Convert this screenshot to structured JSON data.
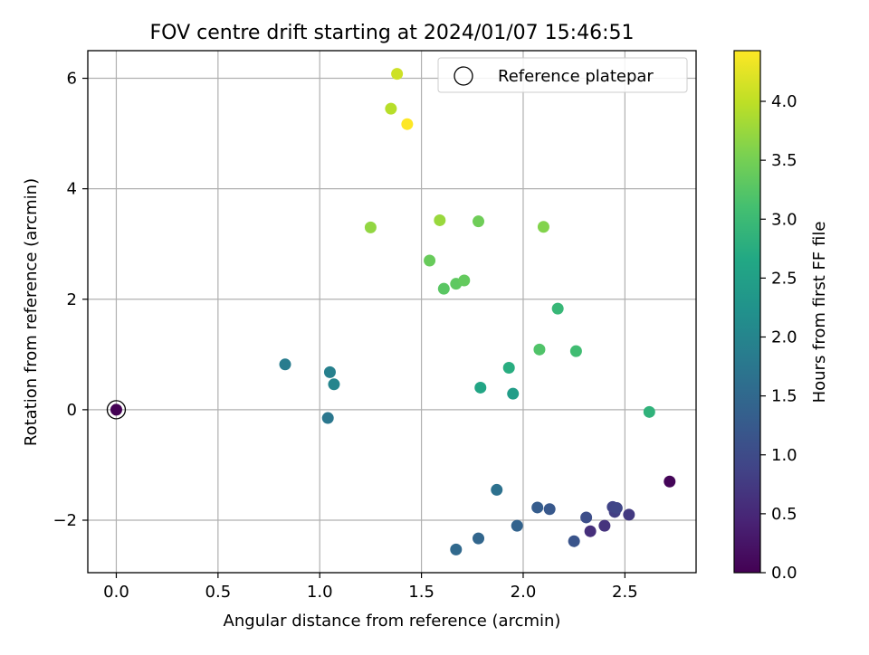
{
  "chart_data": {
    "type": "scatter",
    "title": "FOV centre drift starting at 2024/01/07 15:46:51",
    "xlabel": "Angular distance from reference (arcmin)",
    "ylabel": "Rotation from reference (arcmin)",
    "xlim": [
      -0.14,
      2.85
    ],
    "ylim": [
      -2.95,
      6.5
    ],
    "x_ticks": [
      0.0,
      0.5,
      1.0,
      1.5,
      2.0,
      2.5
    ],
    "x_tick_labels": [
      "0.0",
      "0.5",
      "1.0",
      "1.5",
      "2.0",
      "2.5"
    ],
    "y_ticks": [
      -2,
      0,
      2,
      4,
      6
    ],
    "y_tick_labels": [
      "−2",
      "0",
      "2",
      "4",
      "6"
    ],
    "grid": true,
    "legend": {
      "placement": "top-right",
      "label": "Reference platepar"
    },
    "reference_point": {
      "x": 0.0,
      "y": 0.0
    },
    "colorbar": {
      "label": "Hours from first FF file",
      "range": [
        0.0,
        4.43
      ],
      "ticks": [
        0.0,
        0.5,
        1.0,
        1.5,
        2.0,
        2.5,
        3.0,
        3.5,
        4.0
      ],
      "tick_labels": [
        "0.0",
        "0.5",
        "1.0",
        "1.5",
        "2.0",
        "2.5",
        "3.0",
        "3.5",
        "4.0"
      ],
      "colormap": "viridis"
    },
    "points": [
      {
        "x": 0.0,
        "y": 0.0,
        "hours": 0.0
      },
      {
        "x": 2.72,
        "y": -1.3,
        "hours": 0.05
      },
      {
        "x": 2.33,
        "y": -2.2,
        "hours": 0.6
      },
      {
        "x": 2.4,
        "y": -2.1,
        "hours": 0.65
      },
      {
        "x": 2.52,
        "y": -1.9,
        "hours": 0.75
      },
      {
        "x": 2.45,
        "y": -1.85,
        "hours": 0.82
      },
      {
        "x": 2.44,
        "y": -1.76,
        "hours": 0.88
      },
      {
        "x": 2.46,
        "y": -1.78,
        "hours": 0.92
      },
      {
        "x": 2.31,
        "y": -1.95,
        "hours": 1.05
      },
      {
        "x": 2.25,
        "y": -2.38,
        "hours": 1.15
      },
      {
        "x": 2.13,
        "y": -1.8,
        "hours": 1.22
      },
      {
        "x": 2.07,
        "y": -1.77,
        "hours": 1.3
      },
      {
        "x": 1.97,
        "y": -2.1,
        "hours": 1.4
      },
      {
        "x": 1.78,
        "y": -2.33,
        "hours": 1.45
      },
      {
        "x": 1.67,
        "y": -2.53,
        "hours": 1.5
      },
      {
        "x": 1.87,
        "y": -1.45,
        "hours": 1.65
      },
      {
        "x": 1.04,
        "y": -0.15,
        "hours": 1.75
      },
      {
        "x": 0.83,
        "y": 0.82,
        "hours": 1.85
      },
      {
        "x": 1.05,
        "y": 0.68,
        "hours": 1.92
      },
      {
        "x": 1.07,
        "y": 0.46,
        "hours": 2.0
      },
      {
        "x": 1.95,
        "y": 0.29,
        "hours": 2.45
      },
      {
        "x": 1.79,
        "y": 0.4,
        "hours": 2.6
      },
      {
        "x": 1.93,
        "y": 0.76,
        "hours": 2.75
      },
      {
        "x": 2.62,
        "y": -0.04,
        "hours": 2.85
      },
      {
        "x": 2.17,
        "y": 1.83,
        "hours": 2.95
      },
      {
        "x": 2.26,
        "y": 1.06,
        "hours": 3.05
      },
      {
        "x": 2.08,
        "y": 1.09,
        "hours": 3.2
      },
      {
        "x": 1.61,
        "y": 2.19,
        "hours": 3.28
      },
      {
        "x": 1.67,
        "y": 2.28,
        "hours": 3.32
      },
      {
        "x": 1.71,
        "y": 2.34,
        "hours": 3.36
      },
      {
        "x": 1.54,
        "y": 2.7,
        "hours": 3.4
      },
      {
        "x": 1.78,
        "y": 3.41,
        "hours": 3.45
      },
      {
        "x": 2.1,
        "y": 3.31,
        "hours": 3.6
      },
      {
        "x": 1.25,
        "y": 3.3,
        "hours": 3.7
      },
      {
        "x": 1.59,
        "y": 3.43,
        "hours": 3.75
      },
      {
        "x": 1.35,
        "y": 5.45,
        "hours": 3.95
      },
      {
        "x": 1.38,
        "y": 6.08,
        "hours": 4.1
      },
      {
        "x": 1.43,
        "y": 5.17,
        "hours": 4.43
      }
    ]
  }
}
